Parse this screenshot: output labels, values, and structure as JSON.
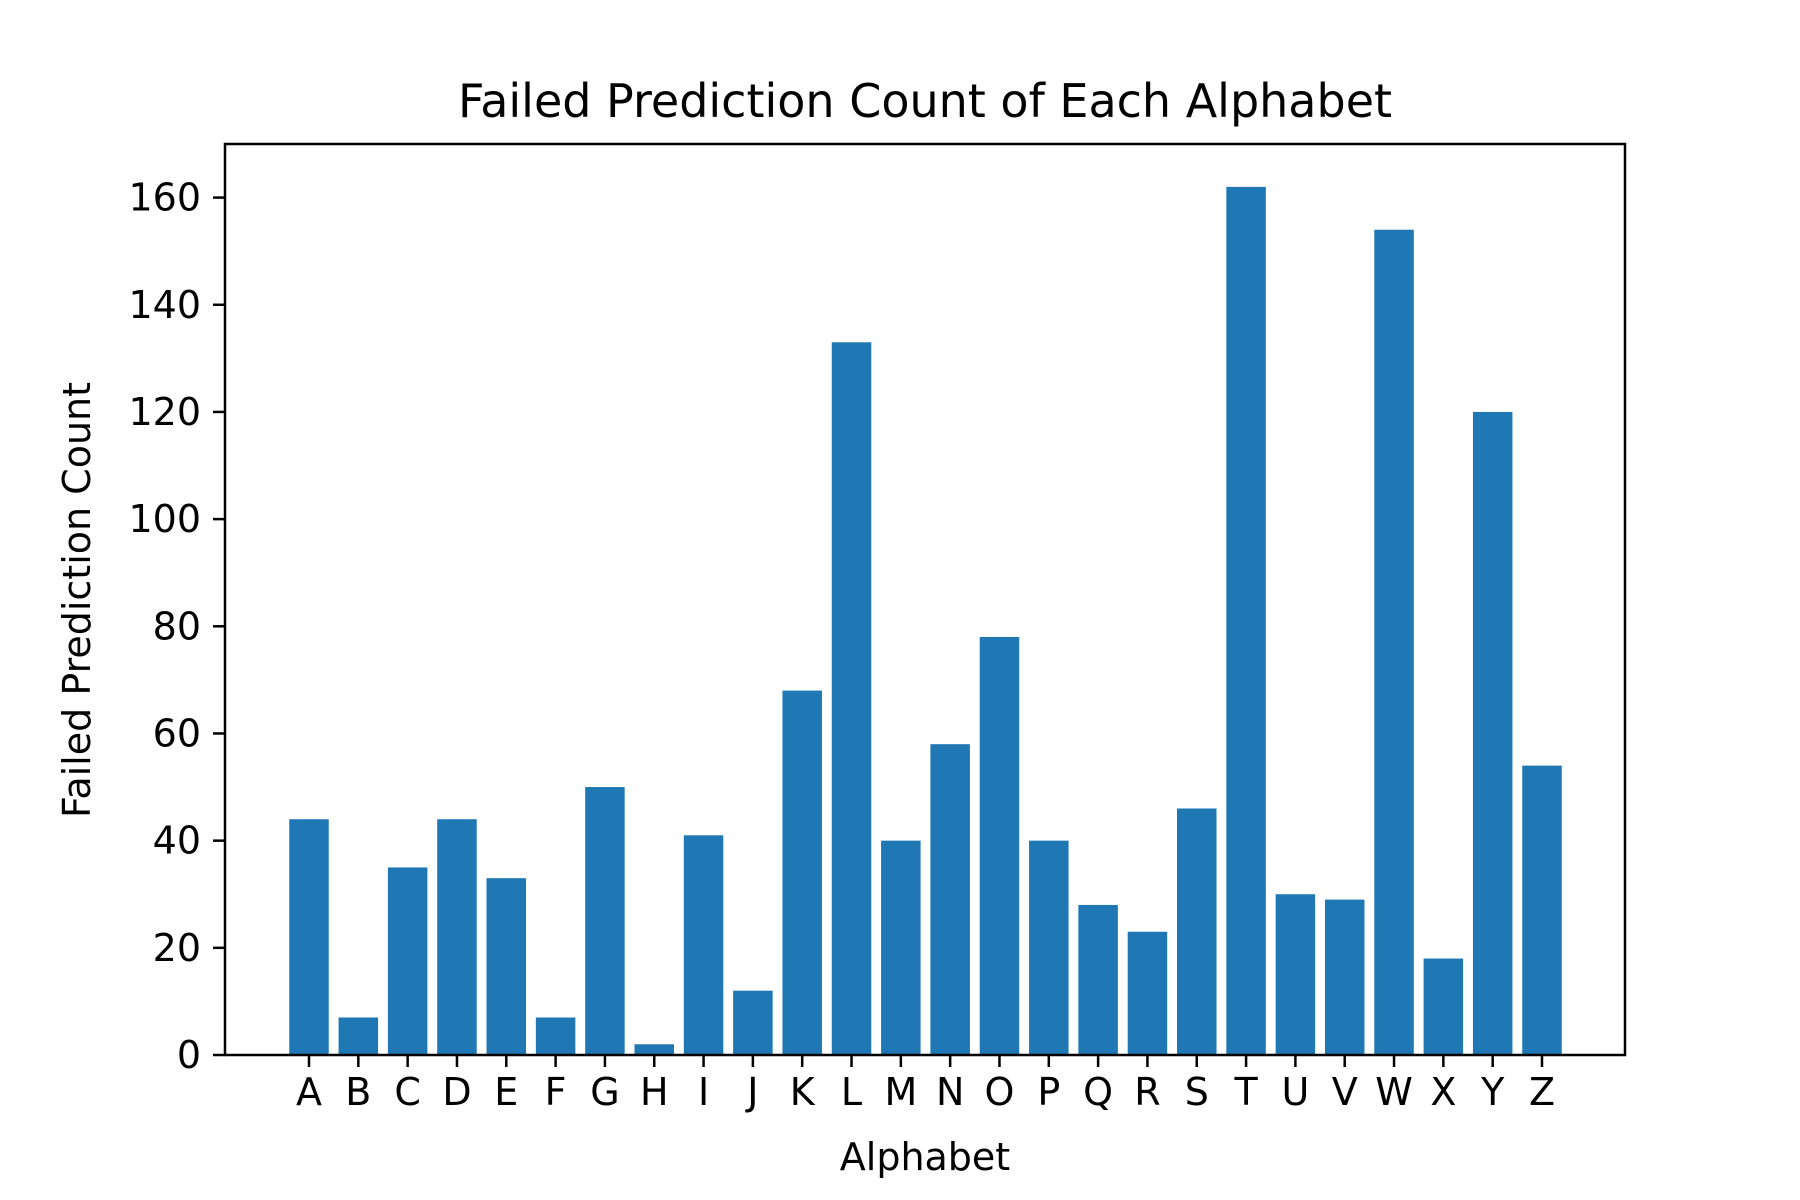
{
  "chart_data": {
    "type": "bar",
    "title": "Failed Prediction Count of Each Alphabet",
    "xlabel": "Alphabet",
    "ylabel": "Failed Prediction Count",
    "categories": [
      "A",
      "B",
      "C",
      "D",
      "E",
      "F",
      "G",
      "H",
      "I",
      "J",
      "K",
      "L",
      "M",
      "N",
      "O",
      "P",
      "Q",
      "R",
      "S",
      "T",
      "U",
      "V",
      "W",
      "X",
      "Y",
      "Z"
    ],
    "values": [
      44,
      7,
      35,
      44,
      33,
      7,
      50,
      2,
      41,
      12,
      68,
      133,
      40,
      58,
      78,
      40,
      28,
      23,
      46,
      162,
      30,
      29,
      154,
      18,
      120,
      54
    ],
    "ylim": [
      0,
      170
    ],
    "yticks": [
      0,
      20,
      40,
      60,
      80,
      100,
      120,
      140,
      160
    ],
    "bar_color": "#1f77b4",
    "grid": false,
    "legend": "none"
  }
}
